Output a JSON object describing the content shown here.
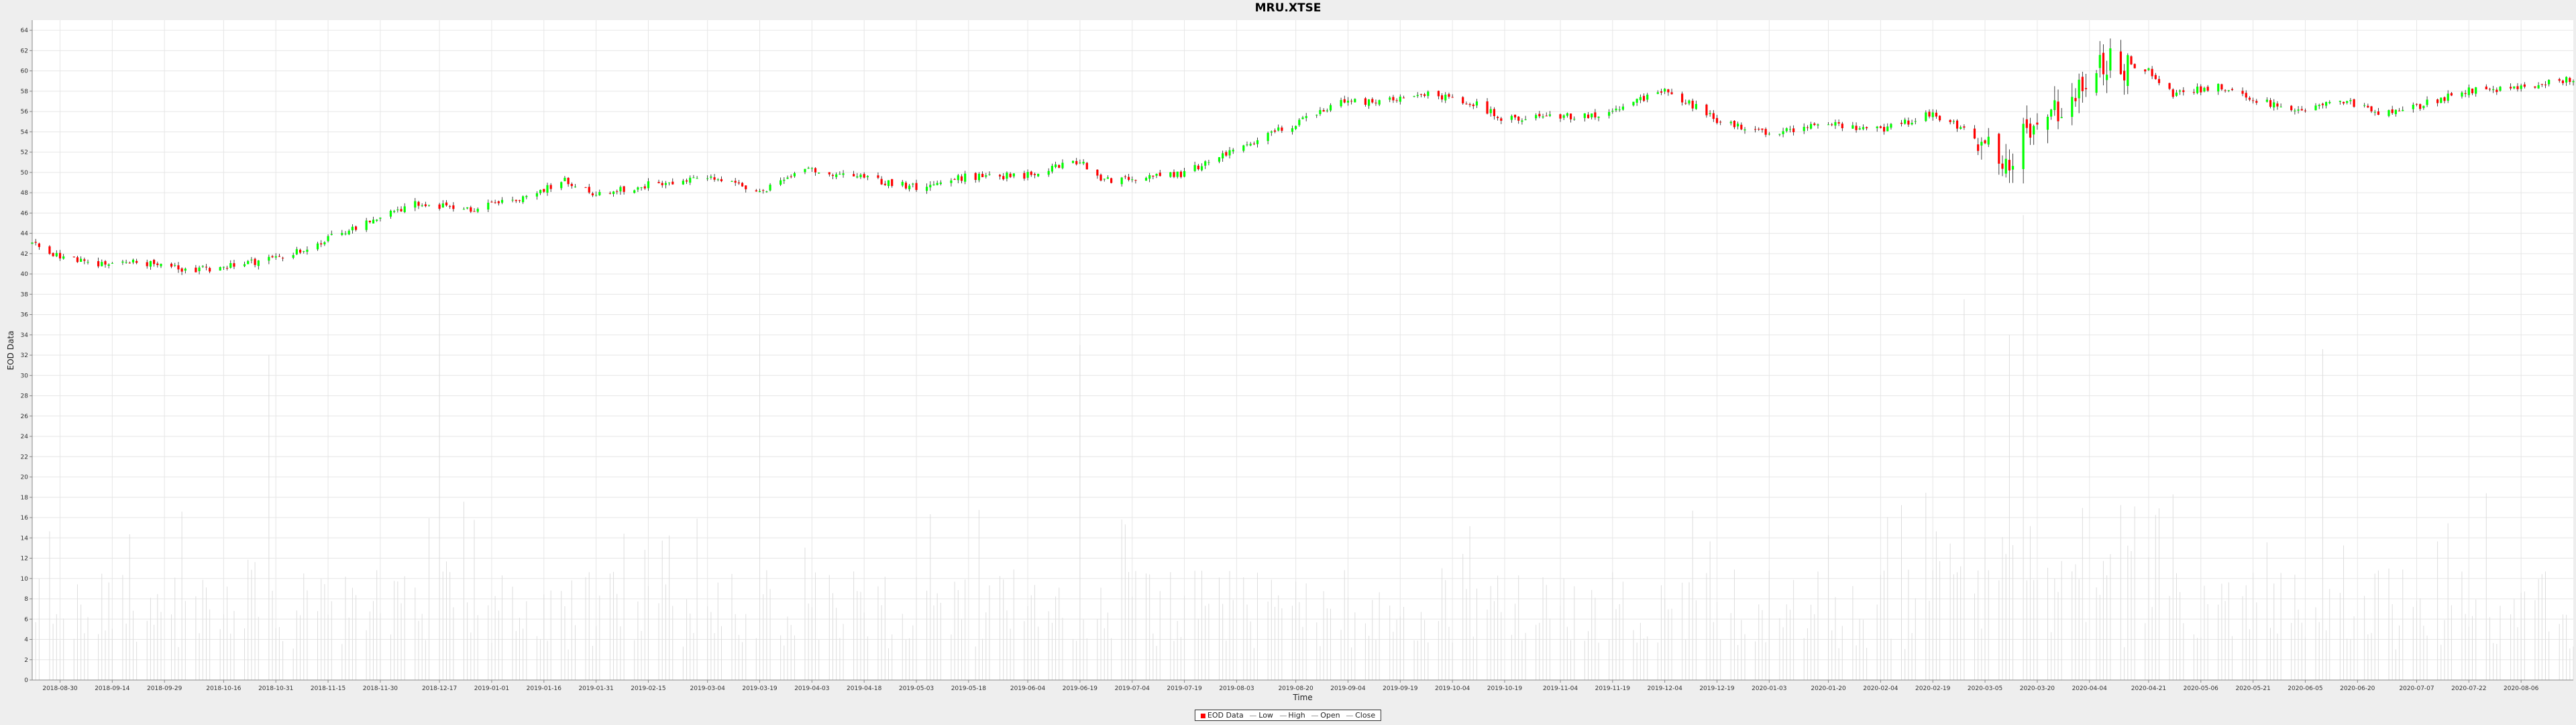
{
  "chart_data": {
    "type": "candlestick",
    "title": "MRU.XTSE",
    "xlabel": "Time",
    "ylabel": "EOD Data",
    "y_ticks": [
      0,
      2,
      4,
      6,
      8,
      10,
      12,
      14,
      16,
      18,
      20,
      22,
      24,
      26,
      28,
      30,
      32,
      34,
      36,
      38,
      40,
      42,
      44,
      46,
      48,
      50,
      52,
      54,
      56,
      58,
      60,
      62,
      64
    ],
    "ylim": [
      0,
      65
    ],
    "x_range": [
      "2018-08-22",
      "2020-08-21"
    ],
    "x_ticks": [
      "2018-08-30",
      "2018-09-14",
      "2018-09-29",
      "2018-10-16",
      "2018-10-31",
      "2018-11-15",
      "2018-11-30",
      "2018-12-17",
      "2019-01-01",
      "2019-01-16",
      "2019-01-31",
      "2019-02-15",
      "2019-03-04",
      "2019-03-19",
      "2019-04-03",
      "2019-04-18",
      "2019-05-03",
      "2019-05-18",
      "2019-06-04",
      "2019-06-19",
      "2019-07-04",
      "2019-07-19",
      "2019-08-03",
      "2019-08-20",
      "2019-09-04",
      "2019-09-19",
      "2019-10-04",
      "2019-10-19",
      "2019-11-04",
      "2019-11-19",
      "2019-12-04",
      "2019-12-19",
      "2020-01-03",
      "2020-01-20",
      "2020-02-04",
      "2020-02-19",
      "2020-03-05",
      "2020-03-20",
      "2020-04-04",
      "2020-04-21",
      "2020-05-06",
      "2020-05-21",
      "2020-06-05",
      "2020-06-20",
      "2020-07-07",
      "2020-07-22",
      "2020-08-06"
    ],
    "close_trend": [
      {
        "date": "2018-08-22",
        "close": 43.0
      },
      {
        "date": "2018-08-28",
        "close": 41.8
      },
      {
        "date": "2018-09-10",
        "close": 40.9
      },
      {
        "date": "2018-09-21",
        "close": 41.2
      },
      {
        "date": "2018-10-05",
        "close": 40.4
      },
      {
        "date": "2018-10-16",
        "close": 40.6
      },
      {
        "date": "2018-10-31",
        "close": 41.5
      },
      {
        "date": "2018-11-15",
        "close": 43.5
      },
      {
        "date": "2018-11-30",
        "close": 45.6
      },
      {
        "date": "2018-12-10",
        "close": 47.0
      },
      {
        "date": "2018-12-24",
        "close": 46.3
      },
      {
        "date": "2019-01-08",
        "close": 47.2
      },
      {
        "date": "2019-01-22",
        "close": 49.3
      },
      {
        "date": "2019-01-30",
        "close": 47.9
      },
      {
        "date": "2019-02-15",
        "close": 48.8
      },
      {
        "date": "2019-03-04",
        "close": 49.6
      },
      {
        "date": "2019-03-19",
        "close": 48.0
      },
      {
        "date": "2019-04-03",
        "close": 50.4
      },
      {
        "date": "2019-04-18",
        "close": 49.4
      },
      {
        "date": "2019-05-03",
        "close": 48.6
      },
      {
        "date": "2019-05-18",
        "close": 49.6
      },
      {
        "date": "2019-06-04",
        "close": 49.7
      },
      {
        "date": "2019-06-19",
        "close": 51.1
      },
      {
        "date": "2019-06-26",
        "close": 49.2
      },
      {
        "date": "2019-07-19",
        "close": 49.9
      },
      {
        "date": "2019-08-03",
        "close": 52.5
      },
      {
        "date": "2019-08-20",
        "close": 54.8
      },
      {
        "date": "2019-09-04",
        "close": 57.3
      },
      {
        "date": "2019-09-12",
        "close": 56.7
      },
      {
        "date": "2019-09-24",
        "close": 57.9
      },
      {
        "date": "2019-10-09",
        "close": 57.0
      },
      {
        "date": "2019-10-19",
        "close": 55.2
      },
      {
        "date": "2019-11-04",
        "close": 55.5
      },
      {
        "date": "2019-11-19",
        "close": 55.8
      },
      {
        "date": "2019-12-04",
        "close": 58.2
      },
      {
        "date": "2019-12-19",
        "close": 55.2
      },
      {
        "date": "2020-01-03",
        "close": 53.7
      },
      {
        "date": "2020-01-20",
        "close": 54.8
      },
      {
        "date": "2020-02-04",
        "close": 54.2
      },
      {
        "date": "2020-02-19",
        "close": 55.8
      },
      {
        "date": "2020-03-03",
        "close": 53.5
      },
      {
        "date": "2020-03-12",
        "close": 51.5
      },
      {
        "date": "2020-03-19",
        "close": 54.5
      },
      {
        "date": "2020-03-30",
        "close": 56.5
      },
      {
        "date": "2020-04-07",
        "close": 61.0
      },
      {
        "date": "2020-04-21",
        "close": 60.0
      },
      {
        "date": "2020-04-28",
        "close": 57.7
      },
      {
        "date": "2020-05-11",
        "close": 58.5
      },
      {
        "date": "2020-05-21",
        "close": 57.2
      },
      {
        "date": "2020-06-05",
        "close": 55.9
      },
      {
        "date": "2020-06-15",
        "close": 57.2
      },
      {
        "date": "2020-06-25",
        "close": 55.9
      },
      {
        "date": "2020-07-07",
        "close": 56.5
      },
      {
        "date": "2020-07-22",
        "close": 58.1
      },
      {
        "date": "2020-08-06",
        "close": 58.3
      },
      {
        "date": "2020-08-21",
        "close": 59.3
      }
    ],
    "volume_spikes": [
      {
        "date": "2018-10-29",
        "value": 32.0
      },
      {
        "date": "2018-12-17",
        "value": 46.5
      },
      {
        "date": "2019-03-19",
        "value": 34.0
      },
      {
        "date": "2019-06-19",
        "value": 33.0
      },
      {
        "date": "2019-09-15",
        "value": 41.5
      },
      {
        "date": "2020-02-28",
        "value": 37.5
      },
      {
        "date": "2020-03-16",
        "value": 45.8
      },
      {
        "date": "2020-03-12",
        "value": 34.0
      },
      {
        "date": "2020-04-04",
        "value": 33.0
      },
      {
        "date": "2020-06-10",
        "value": 32.6
      }
    ],
    "colors": {
      "up": "#00ff00",
      "down": "#ff0000",
      "wick": "#111111",
      "volume": "#dddddd",
      "grid": "#e6e6e6"
    },
    "legend": {
      "placement": "bottom-center",
      "entries": [
        "EOD Data",
        "Low",
        "High",
        "Open",
        "Close"
      ]
    }
  }
}
